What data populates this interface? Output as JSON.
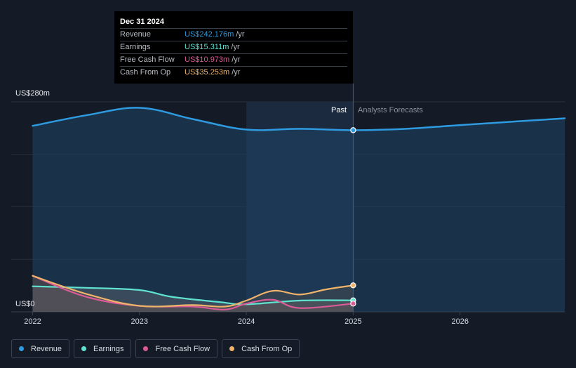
{
  "tooltip": {
    "date": "Dec 31 2024",
    "rows": [
      {
        "label": "Revenue",
        "value": "US$242.176m",
        "unit": "/yr",
        "color": "#2e9be0"
      },
      {
        "label": "Earnings",
        "value": "US$15.311m",
        "unit": "/yr",
        "color": "#5fe3d0"
      },
      {
        "label": "Free Cash Flow",
        "value": "US$10.973m",
        "unit": "/yr",
        "color": "#d95b97"
      },
      {
        "label": "Cash From Op",
        "value": "US$35.253m",
        "unit": "/yr",
        "color": "#f0b36a"
      }
    ]
  },
  "legend": [
    {
      "label": "Revenue",
      "color": "#2e9be0"
    },
    {
      "label": "Earnings",
      "color": "#5fe3d0"
    },
    {
      "label": "Free Cash Flow",
      "color": "#d95b97"
    },
    {
      "label": "Cash From Op",
      "color": "#f0b36a"
    }
  ],
  "chart_data": {
    "type": "line",
    "ylim": [
      0,
      280
    ],
    "xlim": [
      2021.8,
      2026.98
    ],
    "y_top_label": "US$280m",
    "y_bottom_label": "US$0",
    "x_ticks": [
      {
        "value": 2022,
        "label": "2022"
      },
      {
        "value": 2023,
        "label": "2023"
      },
      {
        "value": 2024,
        "label": "2024"
      },
      {
        "value": 2025,
        "label": "2025"
      },
      {
        "value": 2026,
        "label": "2026"
      }
    ],
    "past_label": "Past",
    "forecast_label": "Analysts Forecasts",
    "divider_x": 2025,
    "highlight_start_x": 2024,
    "grid": true,
    "series": [
      {
        "name": "Revenue",
        "color": "#2e9be0",
        "points": [
          [
            2022,
            248
          ],
          [
            2022.5,
            262
          ],
          [
            2023,
            272
          ],
          [
            2023.5,
            257
          ],
          [
            2024,
            243
          ],
          [
            2024.5,
            244
          ],
          [
            2025,
            242.2
          ],
          [
            2025.5,
            244
          ],
          [
            2026,
            249
          ],
          [
            2026.98,
            258
          ]
        ]
      },
      {
        "name": "Earnings",
        "color": "#5fe3d0",
        "points": [
          [
            2022,
            34
          ],
          [
            2022.5,
            32
          ],
          [
            2023,
            29
          ],
          [
            2023.3,
            20
          ],
          [
            2023.75,
            13
          ],
          [
            2024,
            10
          ],
          [
            2024.5,
            15
          ],
          [
            2025,
            15.3
          ]
        ]
      },
      {
        "name": "Free Cash Flow",
        "color": "#d95b97",
        "points": [
          [
            2022,
            48
          ],
          [
            2022.5,
            20
          ],
          [
            2023,
            8
          ],
          [
            2023.5,
            7
          ],
          [
            2023.8,
            3
          ],
          [
            2024,
            11
          ],
          [
            2024.25,
            16
          ],
          [
            2024.5,
            5
          ],
          [
            2025,
            11
          ]
        ]
      },
      {
        "name": "Cash From Op",
        "color": "#f0b36a",
        "points": [
          [
            2022,
            48
          ],
          [
            2022.5,
            24
          ],
          [
            2023,
            8
          ],
          [
            2023.5,
            9
          ],
          [
            2023.8,
            7
          ],
          [
            2024,
            15
          ],
          [
            2024.25,
            28
          ],
          [
            2024.5,
            23
          ],
          [
            2024.75,
            30
          ],
          [
            2025,
            35.3
          ]
        ]
      }
    ]
  }
}
